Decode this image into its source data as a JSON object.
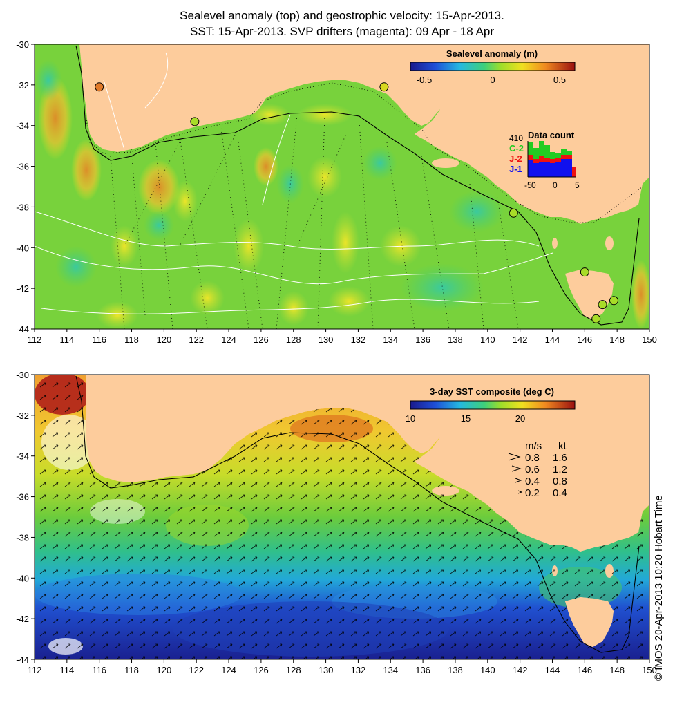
{
  "titles": {
    "line1": "Sealevel anomaly (top) and geostrophic velocity: 15-Apr-2013.",
    "line2": "SST: 15-Apr-2013. SVP drifters (magenta): 09 Apr - 18 Apr"
  },
  "axes": {
    "lon_ticks": [
      "112",
      "114",
      "116",
      "118",
      "120",
      "122",
      "124",
      "126",
      "128",
      "130",
      "132",
      "134",
      "136",
      "138",
      "140",
      "142",
      "144",
      "146",
      "148",
      "150"
    ],
    "lat_ticks": [
      "-30",
      "-32",
      "-34",
      "-36",
      "-38",
      "-40",
      "-42",
      "-44"
    ],
    "lon_range": [
      112,
      150
    ],
    "lat_range": [
      -44,
      -30
    ]
  },
  "top_map": {
    "colorbar": {
      "title": "Sealevel anomaly (m)",
      "labels": [
        "-0.5",
        "0",
        "0.5"
      ],
      "range": [
        -0.6,
        0.6
      ]
    },
    "data_count": {
      "title": "Data count",
      "max_label": "410",
      "series": [
        {
          "label": "C-2",
          "color": "#22cc22"
        },
        {
          "label": "J-2",
          "color": "#ee1111"
        },
        {
          "label": "J-1",
          "color": "#1111ee"
        }
      ],
      "x_labels": [
        "-5",
        "0",
        "0",
        "5"
      ]
    },
    "tide_gauges": [
      {
        "lon": 116.0,
        "lat": -32.1,
        "color": "#e07a2a"
      },
      {
        "lon": 121.9,
        "lat": -33.8,
        "color": "#a8dc28"
      },
      {
        "lon": 133.6,
        "lat": -32.1,
        "color": "#d8d820"
      },
      {
        "lon": 141.6,
        "lat": -38.3,
        "color": "#a8dc28"
      },
      {
        "lon": 146.0,
        "lat": -41.2,
        "color": "#a8dc28"
      },
      {
        "lon": 147.1,
        "lat": -42.8,
        "color": "#a8dc28"
      },
      {
        "lon": 147.8,
        "lat": -42.6,
        "color": "#a8dc28"
      },
      {
        "lon": 146.7,
        "lat": -43.5,
        "color": "#a8dc28"
      }
    ]
  },
  "bottom_map": {
    "colorbar": {
      "title": "3-day SST composite (deg C)",
      "labels": [
        "10",
        "15",
        "20"
      ],
      "range": [
        10,
        25
      ]
    },
    "velocity_key": {
      "header_ms": "m/s",
      "header_kt": "kt",
      "rows": [
        {
          "ms": "0.8",
          "kt": "1.6"
        },
        {
          "ms": "0.6",
          "kt": "1.2"
        },
        {
          "ms": "0.4",
          "kt": "0.8"
        },
        {
          "ms": "0.2",
          "kt": "0.4"
        }
      ]
    }
  },
  "colors": {
    "land": "#fdcc9c",
    "ocean_top": "#78d23c",
    "ocean_bottom_mid": "#60c84a"
  },
  "copyright": "© IMOS 20-Apr-2013 10:20 Hobart Time"
}
